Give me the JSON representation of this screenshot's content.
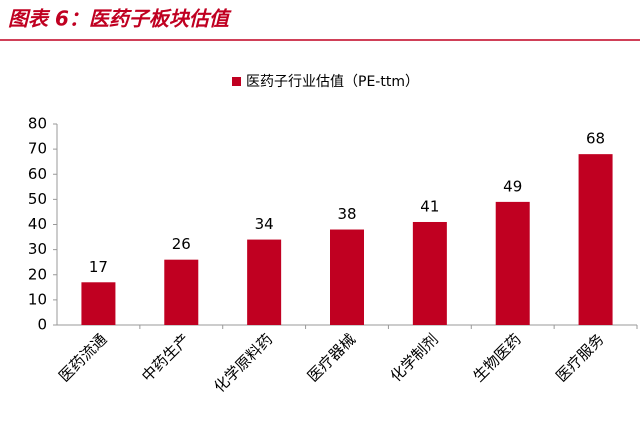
{
  "chart_data": {
    "type": "bar",
    "title": "图表 6：医药子板块估值",
    "series": [
      {
        "name": "医药子行业估值（PE-ttm）",
        "color": "#c00021",
        "values": [
          17,
          26,
          34,
          38,
          41,
          49,
          68
        ]
      }
    ],
    "categories": [
      "医药流通",
      "中药生产",
      "化学原料药",
      "医疗器械",
      "化学制剂",
      "生物医药",
      "医疗服务"
    ],
    "ylim": [
      0,
      80
    ],
    "yticks": [
      0,
      10,
      20,
      30,
      40,
      50,
      60,
      70,
      80
    ]
  }
}
